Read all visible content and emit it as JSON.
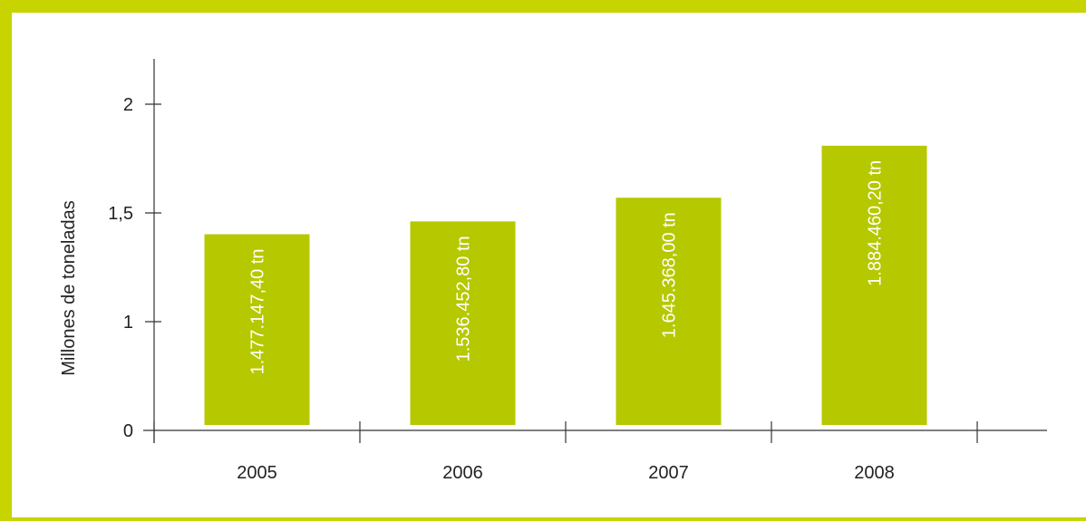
{
  "colors": {
    "frame": "#c8d400",
    "bar": "#b5c800",
    "axis": "#333333",
    "bar_label": "#ffffff"
  },
  "chart_data": {
    "type": "bar",
    "title": "",
    "xlabel": "",
    "ylabel": "Millones  de toneladas",
    "categories": [
      "2005",
      "2006",
      "2007",
      "2008"
    ],
    "values": [
      1.477,
      1.536,
      1.645,
      1.884
    ],
    "data_labels": [
      "1.477.147,40 tn",
      "1.536.452,80 tn",
      "1.645.368,00 tn",
      "1.884.460,20 tn"
    ],
    "yticks": [
      0,
      1,
      1.5,
      2
    ],
    "ytick_labels": [
      "0",
      "1",
      "1,5",
      "2"
    ],
    "grid": false,
    "legend": "none"
  }
}
